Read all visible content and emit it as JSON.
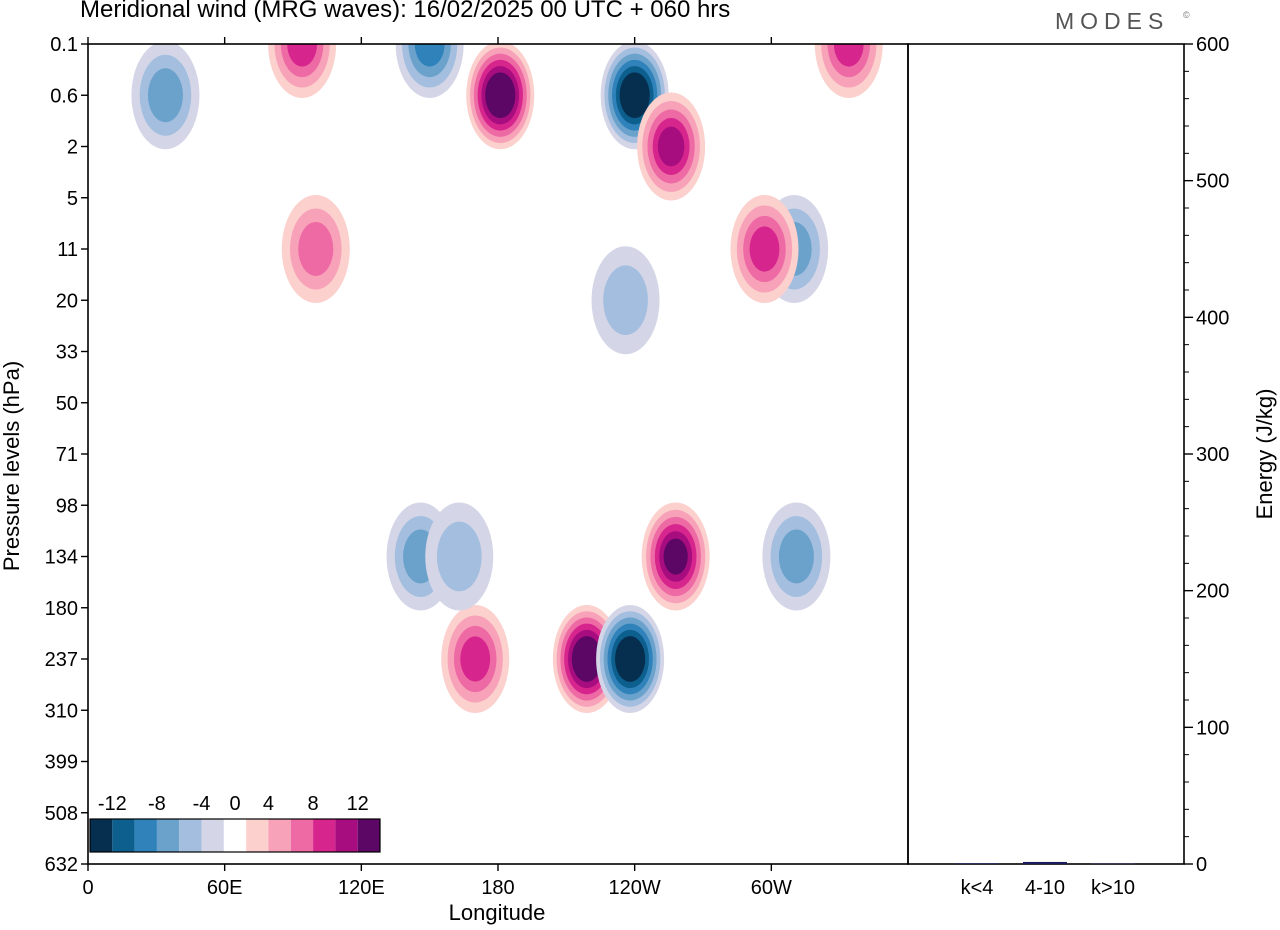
{
  "title": "Meridional wind (MRG waves):  16/02/2025  00 UTC  + 060 hrs",
  "logo_text": "MODES",
  "logo_mark": "©",
  "chart_data": [
    {
      "type": "heatmap",
      "xlabel": "Longitude",
      "ylabel": "Pressure levels (hPa)",
      "x_ticks": [
        "0",
        "60E",
        "120E",
        "180",
        "120W",
        "60W"
      ],
      "y_ticks": [
        "0.1",
        "0.6",
        "2",
        "5",
        "11",
        "20",
        "33",
        "50",
        "71",
        "98",
        "134",
        "180",
        "237",
        "310",
        "399",
        "508",
        "632"
      ],
      "colorbar": {
        "labels": [
          "-12",
          "-8",
          "-4",
          "0",
          "4",
          "8",
          "12"
        ],
        "levels": [
          -14,
          -12,
          -10,
          -8,
          -6,
          -4,
          -2,
          2,
          4,
          6,
          8,
          10,
          12,
          14
        ],
        "colors": [
          "#062e4f",
          "#0d5f8e",
          "#2f82ba",
          "#6ba2cc",
          "#a3bede",
          "#d4d6e8",
          "#ffffff",
          "#fbd0cd",
          "#f7a2b9",
          "#ee6aa4",
          "#d7258e",
          "#a80d80",
          "#5c0765"
        ]
      },
      "features": [
        {
          "lon": 181,
          "level": "0.6",
          "value": 14
        },
        {
          "lon": 240,
          "level": "0.6",
          "value": -14
        },
        {
          "lon": 256,
          "level": "2",
          "value": 11
        },
        {
          "lon": 219,
          "level": "237",
          "value": 14
        },
        {
          "lon": 238,
          "level": "237",
          "value": -14
        },
        {
          "lon": 258,
          "level": "134",
          "value": 12
        },
        {
          "lon": 170,
          "level": "237",
          "value": 8
        },
        {
          "lon": 146,
          "level": "134",
          "value": -7
        },
        {
          "lon": 163,
          "level": "134",
          "value": -5
        },
        {
          "lon": 100,
          "level": "11",
          "value": 6
        },
        {
          "lon": 34,
          "level": "0.6",
          "value": -6
        },
        {
          "lon": 94,
          "level": "0.1",
          "value": 9
        },
        {
          "lon": 150,
          "level": "0.1",
          "value": -8
        },
        {
          "lon": 334,
          "level": "0.1",
          "value": 8
        },
        {
          "lon": 311,
          "level": "134",
          "value": -6
        },
        {
          "lon": 310,
          "level": "11",
          "value": -6
        },
        {
          "lon": 297,
          "level": "11",
          "value": 8
        },
        {
          "lon": 236,
          "level": "20",
          "value": -5
        }
      ]
    },
    {
      "type": "bar",
      "ylabel": "Energy (J/kg)",
      "categories": [
        "k<4",
        "4-10",
        "k>10"
      ],
      "values": [
        0.5,
        1.5,
        0.3
      ],
      "ylim": [
        0,
        600
      ],
      "y_ticks": [
        "0",
        "100",
        "200",
        "300",
        "400",
        "500",
        "600"
      ],
      "bar_color": "#1b1b5e"
    }
  ]
}
